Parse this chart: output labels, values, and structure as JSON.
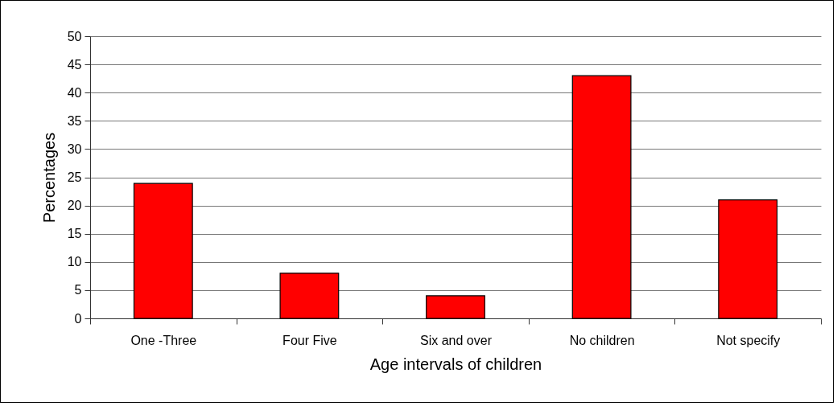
{
  "chart_data": {
    "type": "bar",
    "xlabel": "Age intervals of children",
    "ylabel": "Percentages",
    "categories": [
      "One -Three",
      "Four Five",
      "Six and over",
      "No children",
      "Not specify"
    ],
    "values": [
      23.9,
      8,
      4,
      43,
      21
    ],
    "color": "#ff0000",
    "ylim": [
      0,
      50
    ],
    "yticks": [
      0,
      5,
      10,
      15,
      20,
      25,
      30,
      35,
      40,
      45,
      50
    ],
    "grid": "y"
  }
}
